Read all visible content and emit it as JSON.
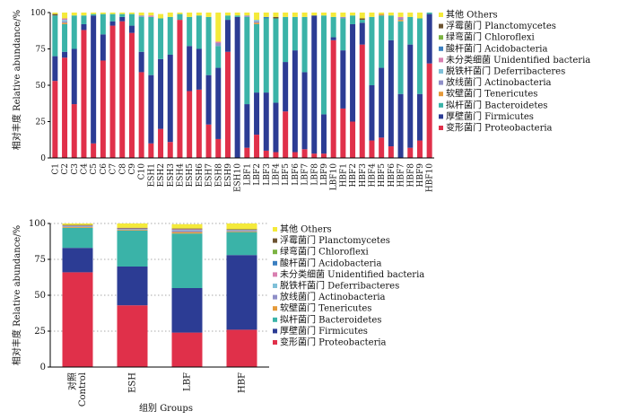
{
  "phyla": [
    {
      "key": "proteo",
      "name": "变形菌门 Proteobacteria",
      "color": "#e0304a"
    },
    {
      "key": "firm",
      "name": "厚壁菌门 Firmicutes",
      "color": "#2c3c94"
    },
    {
      "key": "bact",
      "name": "拟杆菌门 Bacteroidetes",
      "color": "#3ab3a8"
    },
    {
      "key": "tener",
      "name": "软壁菌门 Tenericutes",
      "color": "#e59a3a"
    },
    {
      "key": "actino",
      "name": "放线菌门 Actinobacteria",
      "color": "#8f8fc8"
    },
    {
      "key": "defer",
      "name": "脱铁杆菌门 Deferribacteres",
      "color": "#7fc0d8"
    },
    {
      "key": "unid",
      "name": "未分类细菌 Unidentified bacteria",
      "color": "#d97fb0"
    },
    {
      "key": "acido",
      "name": "酸杆菌门 Acidobacteria",
      "color": "#3a7fc0"
    },
    {
      "key": "chloro",
      "name": "绿弯菌门 Chloroflexi",
      "color": "#7cb342"
    },
    {
      "key": "plancto",
      "name": "浮霉菌门 Planctomycetes",
      "color": "#6d5432"
    },
    {
      "key": "others",
      "name": "其他 Others",
      "color": "#f4ea3a"
    }
  ],
  "chart_data": [
    {
      "type": "bar",
      "stacked": true,
      "ylabel": "相对丰度 Relative abundance/%",
      "xlabel": "",
      "ylim": [
        0,
        100
      ],
      "yticks": [
        0,
        25,
        50,
        75,
        100
      ],
      "legend_position": "right",
      "categories": [
        "C1",
        "C2",
        "C3",
        "C4",
        "C5",
        "C6",
        "C7",
        "C8",
        "C9",
        "C10",
        "ESH1",
        "ESH2",
        "ESH3",
        "ESH4",
        "ESH5",
        "ESH6",
        "ESH7",
        "ESH8",
        "ESH9",
        "ESH10",
        "LBF1",
        "LBF2",
        "LBF3",
        "LBF4",
        "LBF5",
        "LBF6",
        "LBF7",
        "LBF8",
        "LBF9",
        "LBF10",
        "HBF1",
        "HBF2",
        "HBF3",
        "HBF4",
        "HBF5",
        "HBF6",
        "HBF7",
        "HBF8",
        "HBF9",
        "HBF10"
      ],
      "series": [
        {
          "key": "proteo",
          "values": [
            53,
            69,
            37,
            88,
            10,
            67,
            91,
            94,
            86,
            59,
            10,
            20,
            11,
            95,
            46,
            47,
            23,
            13,
            73,
            0,
            7,
            16,
            5,
            4,
            32,
            4,
            6,
            3,
            3,
            81,
            34,
            25,
            78,
            12,
            14,
            8,
            0,
            7,
            12,
            65
          ]
        },
        {
          "key": "firm",
          "values": [
            17,
            4,
            38,
            4,
            88,
            18,
            3,
            3,
            5,
            14,
            47,
            48,
            60,
            0,
            31,
            28,
            34,
            49,
            22,
            97,
            30,
            29,
            40,
            34,
            34,
            70,
            53,
            95,
            27,
            2,
            40,
            67,
            15,
            38,
            48,
            73,
            44,
            71,
            32,
            34
          ]
        },
        {
          "key": "bact",
          "values": [
            28,
            19,
            23,
            6,
            1,
            14,
            5,
            2,
            8,
            24,
            40,
            28,
            26,
            4,
            20,
            23,
            40,
            15,
            3,
            1,
            60,
            47,
            51,
            58,
            31,
            23,
            38,
            0,
            68,
            14,
            22,
            6,
            2,
            47,
            36,
            17,
            50,
            19,
            52,
            1
          ]
        },
        {
          "key": "tener",
          "values": [
            0,
            1,
            0,
            0,
            0,
            0,
            0,
            0,
            0,
            0,
            0,
            0,
            0,
            0,
            0,
            0,
            0,
            0,
            0,
            0,
            0,
            1,
            0,
            0,
            0,
            0,
            0,
            0,
            0,
            0,
            0,
            0,
            0,
            0,
            1,
            0,
            1,
            0,
            0,
            0
          ]
        },
        {
          "key": "actino",
          "values": [
            0,
            1,
            0,
            0,
            0,
            0,
            0,
            0,
            0,
            1,
            0,
            0,
            0,
            0,
            0,
            0,
            0,
            2,
            0,
            0,
            1,
            1,
            0,
            0,
            0,
            0,
            0,
            0,
            0,
            0,
            1,
            0,
            0,
            0,
            0,
            0,
            1,
            0,
            0,
            0
          ]
        },
        {
          "key": "defer",
          "values": [
            0,
            1,
            0,
            0,
            0,
            0,
            0,
            0,
            0,
            0,
            0,
            0,
            0,
            0,
            0,
            0,
            0,
            0,
            0,
            0,
            0,
            1,
            0,
            0,
            0,
            0,
            0,
            0,
            0,
            0,
            0,
            0,
            0,
            0,
            0,
            0,
            0,
            0,
            0,
            0
          ]
        },
        {
          "key": "unid",
          "values": [
            0,
            1,
            0,
            0,
            0,
            0,
            0,
            0,
            0,
            0,
            1,
            0,
            0,
            0,
            0,
            0,
            0,
            1,
            0,
            0,
            0,
            0,
            0,
            0,
            0,
            0,
            0,
            0,
            0,
            0,
            0,
            0,
            0,
            0,
            0,
            0,
            1,
            0,
            0,
            0
          ]
        },
        {
          "key": "acido",
          "values": [
            0,
            0,
            0,
            0,
            0,
            0,
            0,
            0,
            0,
            0,
            0,
            0,
            0,
            0,
            0,
            0,
            0,
            0,
            0,
            0,
            0,
            0,
            1,
            0,
            0,
            0,
            0,
            0,
            0,
            0,
            0,
            0,
            0,
            0,
            0,
            0,
            0,
            0,
            0,
            0
          ]
        },
        {
          "key": "chloro",
          "values": [
            0,
            0,
            0,
            0,
            0,
            0,
            0,
            0,
            0,
            0,
            0,
            0,
            0,
            0,
            0,
            0,
            0,
            0,
            0,
            0,
            0,
            0,
            0,
            0,
            0,
            0,
            0,
            0,
            0,
            0,
            0,
            0,
            0,
            0,
            0,
            0,
            0,
            0,
            0,
            0
          ]
        },
        {
          "key": "plancto",
          "values": [
            1,
            0,
            0,
            0,
            0,
            0,
            0,
            0,
            0,
            0,
            0,
            0,
            0,
            0,
            0,
            0,
            0,
            0,
            0,
            0,
            0,
            0,
            0,
            1,
            0,
            0,
            0,
            0,
            0,
            0,
            0,
            0,
            1,
            0,
            0,
            0,
            0,
            0,
            0,
            0
          ]
        },
        {
          "key": "others",
          "values": [
            1,
            4,
            2,
            2,
            1,
            1,
            1,
            1,
            1,
            2,
            2,
            3,
            3,
            1,
            3,
            2,
            3,
            20,
            2,
            2,
            2,
            5,
            3,
            3,
            3,
            3,
            3,
            2,
            2,
            3,
            3,
            2,
            4,
            3,
            1,
            2,
            3,
            3,
            4,
            0
          ]
        }
      ]
    },
    {
      "type": "bar",
      "stacked": true,
      "ylabel": "相对丰度 Relative abundance/%",
      "xlabel": "组别 Groups",
      "ylim": [
        0,
        100
      ],
      "yticks": [
        0,
        25,
        50,
        75,
        100
      ],
      "grid": "dotted",
      "legend_position": "right",
      "categories": [
        "对照\nControl",
        "ESH",
        "LBF",
        "HBF"
      ],
      "series": [
        {
          "key": "proteo",
          "values": [
            66,
            43,
            24,
            26
          ]
        },
        {
          "key": "firm",
          "values": [
            17,
            27,
            31,
            52
          ]
        },
        {
          "key": "bact",
          "values": [
            14,
            25,
            38,
            16
          ]
        },
        {
          "key": "tener",
          "values": [
            0.5,
            0.5,
            1,
            0.5
          ]
        },
        {
          "key": "actino",
          "values": [
            0.5,
            0.5,
            1,
            0.5
          ]
        },
        {
          "key": "defer",
          "values": [
            0.3,
            0.3,
            0.5,
            0.3
          ]
        },
        {
          "key": "unid",
          "values": [
            0.2,
            0.2,
            0.5,
            0.2
          ]
        },
        {
          "key": "acido",
          "values": [
            0,
            0,
            0,
            0
          ]
        },
        {
          "key": "chloro",
          "values": [
            0,
            0,
            0,
            0
          ]
        },
        {
          "key": "plancto",
          "values": [
            0.5,
            0.5,
            0.5,
            0.5
          ]
        },
        {
          "key": "others",
          "values": [
            1,
            3,
            3,
            4
          ]
        }
      ]
    }
  ]
}
